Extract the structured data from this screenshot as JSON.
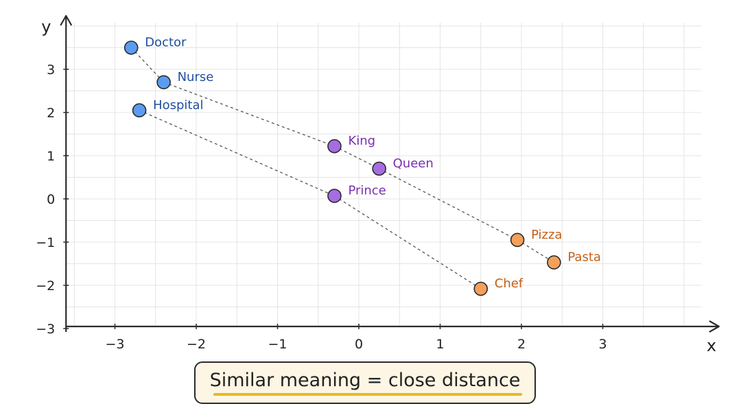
{
  "chart_data": {
    "type": "scatter",
    "title": "",
    "xlabel": "x",
    "ylabel": "y",
    "xlim": [
      -3.5,
      4.1
    ],
    "ylim": [
      -3,
      4
    ],
    "xticks": [
      -3,
      -2,
      -1,
      0,
      1,
      2,
      3
    ],
    "xtick_labels": [
      "−3",
      "−2",
      "−1",
      "0",
      "1",
      "2",
      "3"
    ],
    "yticks": [
      -3,
      -2,
      -1,
      0,
      1,
      2,
      3
    ],
    "ytick_labels": [
      "−3",
      "−2",
      "−1",
      "0",
      "1",
      "2",
      "3"
    ],
    "grid": true,
    "points": [
      {
        "label": "Doctor",
        "x": -2.8,
        "y": 3.5,
        "color": "#5b9cf0",
        "text_color": "#1f4f9e"
      },
      {
        "label": "Nurse",
        "x": -2.4,
        "y": 2.7,
        "color": "#5b9cf0",
        "text_color": "#1f4f9e"
      },
      {
        "label": "Hospital",
        "x": -2.7,
        "y": 2.05,
        "color": "#5b9cf0",
        "text_color": "#1f4f9e"
      },
      {
        "label": "King",
        "x": -0.3,
        "y": 1.22,
        "color": "#a66de3",
        "text_color": "#7a2fae"
      },
      {
        "label": "Queen",
        "x": 0.25,
        "y": 0.7,
        "color": "#a66de3",
        "text_color": "#7a2fae"
      },
      {
        "label": "Prince",
        "x": -0.3,
        "y": 0.07,
        "color": "#a66de3",
        "text_color": "#7a2fae"
      },
      {
        "label": "Pizza",
        "x": 1.95,
        "y": -0.95,
        "color": "#f3a05b",
        "text_color": "#c45f16"
      },
      {
        "label": "Pasta",
        "x": 2.4,
        "y": -1.47,
        "color": "#f3a05b",
        "text_color": "#c45f16"
      },
      {
        "label": "Chef",
        "x": 1.5,
        "y": -2.08,
        "color": "#f3a05b",
        "text_color": "#c45f16"
      }
    ],
    "connections": [
      [
        "Doctor",
        "Nurse"
      ],
      [
        "Nurse",
        "King"
      ],
      [
        "King",
        "Queen"
      ],
      [
        "Queen",
        "Pizza"
      ],
      [
        "Pizza",
        "Pasta"
      ],
      [
        "Hospital",
        "Prince"
      ],
      [
        "Prince",
        "Chef"
      ]
    ]
  },
  "caption": {
    "text": "Similar meaning = close distance",
    "underline_color": "#e8b923"
  }
}
